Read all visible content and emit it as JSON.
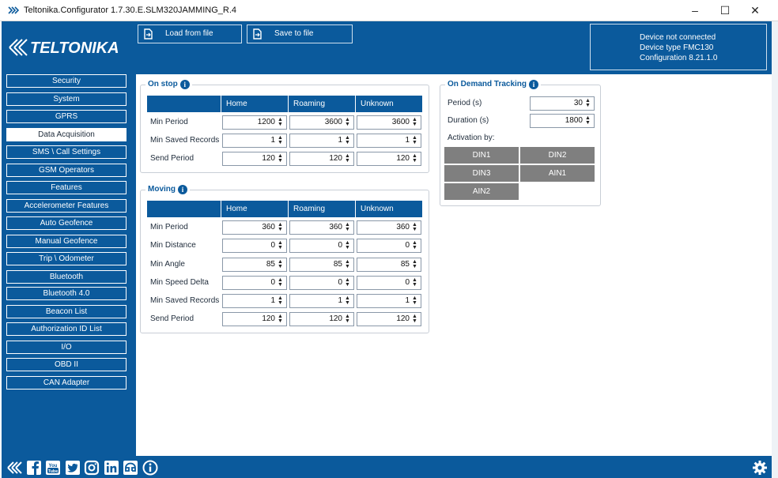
{
  "window": {
    "title": "Teltonika.Configurator 1.7.30.E.SLM320JAMMING_R.4"
  },
  "toolbar": {
    "load_label": "Load from file",
    "save_label": "Save to file"
  },
  "device": {
    "status": "Device not connected",
    "type": "Device type FMC130",
    "config": "Configuration 8.21.1.0"
  },
  "nav": {
    "items": [
      {
        "label": "Security"
      },
      {
        "label": "System"
      },
      {
        "label": "GPRS"
      },
      {
        "label": "Data Acquisition"
      },
      {
        "label": "SMS \\ Call Settings"
      },
      {
        "label": "GSM Operators"
      },
      {
        "label": "Features"
      },
      {
        "label": "Accelerometer Features"
      },
      {
        "label": "Auto Geofence"
      },
      {
        "label": "Manual Geofence"
      },
      {
        "label": "Trip \\ Odometer"
      },
      {
        "label": "Bluetooth"
      },
      {
        "label": "Bluetooth 4.0"
      },
      {
        "label": "Beacon List"
      },
      {
        "label": "Authorization ID List"
      },
      {
        "label": "I/O"
      },
      {
        "label": "OBD II"
      },
      {
        "label": "CAN Adapter"
      }
    ],
    "active": "Data Acquisition"
  },
  "on_stop": {
    "title": "On stop",
    "columns": [
      "Home",
      "Roaming",
      "Unknown"
    ],
    "rows": [
      {
        "label": "Min Period",
        "values": [
          "1200",
          "3600",
          "3600"
        ]
      },
      {
        "label": "Min Saved Records",
        "values": [
          "1",
          "1",
          "1"
        ]
      },
      {
        "label": "Send Period",
        "values": [
          "120",
          "120",
          "120"
        ]
      }
    ]
  },
  "moving": {
    "title": "Moving",
    "columns": [
      "Home",
      "Roaming",
      "Unknown"
    ],
    "rows": [
      {
        "label": "Min Period",
        "values": [
          "360",
          "360",
          "360"
        ]
      },
      {
        "label": "Min Distance",
        "values": [
          "0",
          "0",
          "0"
        ]
      },
      {
        "label": "Min Angle",
        "values": [
          "85",
          "85",
          "85"
        ]
      },
      {
        "label": "Min Speed Delta",
        "values": [
          "0",
          "0",
          "0"
        ]
      },
      {
        "label": "Min Saved Records",
        "values": [
          "1",
          "1",
          "1"
        ]
      },
      {
        "label": "Send Period",
        "values": [
          "120",
          "120",
          "120"
        ]
      }
    ]
  },
  "odt": {
    "title": "On Demand Tracking",
    "period_label": "Period   (s)",
    "period_value": "30",
    "duration_label": "Duration   (s)",
    "duration_value": "1800",
    "activation_label": "Activation by:",
    "buttons": [
      "DIN1",
      "DIN2",
      "DIN3",
      "AIN1",
      "AIN2"
    ]
  },
  "brand": {
    "name": "TELTONIKA"
  },
  "colors": {
    "primary": "#0b5a9c",
    "button_gray": "#7f7f7f"
  },
  "footer_icons": [
    "teltonika-icon",
    "facebook-icon",
    "youtube-icon",
    "twitter-icon",
    "instagram-icon",
    "linkedin-icon",
    "chat-icon",
    "info-icon"
  ]
}
